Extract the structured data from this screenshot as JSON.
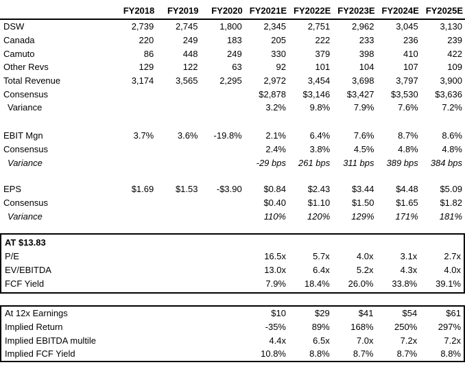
{
  "table": {
    "columns": [
      "FY2018",
      "FY2019",
      "FY2020",
      "FY2021E",
      "FY2022E",
      "FY2023E",
      "FY2024E",
      "FY2025E"
    ],
    "sections": [
      {
        "id": "revenue",
        "rows": [
          {
            "label": "DSW",
            "values": [
              "2,739",
              "2,745",
              "1,800",
              "2,345",
              "2,751",
              "2,962",
              "3,045",
              "3,130"
            ]
          },
          {
            "label": "Canada",
            "values": [
              "220",
              "249",
              "183",
              "205",
              "222",
              "233",
              "236",
              "239"
            ]
          },
          {
            "label": "Camuto",
            "values": [
              "86",
              "448",
              "249",
              "330",
              "379",
              "398",
              "410",
              "422"
            ]
          },
          {
            "label": "Other Revs",
            "values": [
              "129",
              "122",
              "63",
              "92",
              "101",
              "104",
              "107",
              "109"
            ]
          },
          {
            "label": "Total Revenue",
            "values": [
              "3,174",
              "3,565",
              "2,295",
              "2,972",
              "3,454",
              "3,698",
              "3,797",
              "3,900"
            ]
          },
          {
            "label": "Consensus",
            "values": [
              "",
              "",
              "",
              "$2,878",
              "$3,146",
              "$3,427",
              "$3,530",
              "$3,636"
            ]
          },
          {
            "label": "Variance",
            "indent": true,
            "values": [
              "",
              "",
              "",
              "3.2%",
              "9.8%",
              "7.9%",
              "7.6%",
              "7.2%"
            ]
          }
        ]
      },
      {
        "id": "ebit-margin",
        "rows": [
          {
            "label": "EBIT Mgn",
            "values": [
              "3.7%",
              "3.6%",
              "-19.8%",
              "2.1%",
              "6.4%",
              "7.6%",
              "8.7%",
              "8.6%"
            ]
          },
          {
            "label": "Consensus",
            "values": [
              "",
              "",
              "",
              "2.4%",
              "3.8%",
              "4.5%",
              "4.8%",
              "4.8%"
            ]
          },
          {
            "label": "Variance",
            "indent": true,
            "italic": true,
            "values": [
              "",
              "",
              "",
              "-29 bps",
              "261 bps",
              "311 bps",
              "389 bps",
              "384 bps"
            ]
          }
        ]
      },
      {
        "id": "eps",
        "rows": [
          {
            "label": "EPS",
            "values": [
              "$1.69",
              "$1.53",
              "-$3.90",
              "$0.84",
              "$2.43",
              "$3.44",
              "$4.48",
              "$5.09"
            ]
          },
          {
            "label": "Consensus",
            "values": [
              "",
              "",
              "",
              "$0.40",
              "$1.10",
              "$1.50",
              "$1.65",
              "$1.82"
            ]
          },
          {
            "label": "Variance",
            "indent": true,
            "italic": true,
            "values": [
              "",
              "",
              "",
              "110%",
              "120%",
              "129%",
              "171%",
              "181%"
            ]
          }
        ]
      }
    ],
    "boxes": [
      {
        "id": "valuation-at-price",
        "rows": [
          {
            "label": "AT $13.83",
            "bold": true
          },
          {
            "label": "P/E",
            "values": [
              "",
              "",
              "",
              "16.5x",
              "5.7x",
              "4.0x",
              "3.1x",
              "2.7x"
            ]
          },
          {
            "label": "EV/EBITDA",
            "values": [
              "",
              "",
              "",
              "13.0x",
              "6.4x",
              "5.2x",
              "4.3x",
              "4.0x"
            ]
          },
          {
            "label": "FCF Yield",
            "values": [
              "",
              "",
              "",
              "7.9%",
              "18.4%",
              "26.0%",
              "33.8%",
              "39.1%"
            ]
          }
        ]
      },
      {
        "id": "implied-returns",
        "rows": [
          {
            "label": "At 12x Earnings",
            "values": [
              "",
              "",
              "",
              "$10",
              "$29",
              "$41",
              "$54",
              "$61"
            ]
          },
          {
            "label": "Implied Return",
            "values": [
              "",
              "",
              "",
              "-35%",
              "89%",
              "168%",
              "250%",
              "297%"
            ]
          },
          {
            "label": "Implied EBITDA multile",
            "values": [
              "",
              "",
              "",
              "4.4x",
              "6.5x",
              "7.0x",
              "7.2x",
              "7.2x"
            ]
          },
          {
            "label": "Implied FCF Yield",
            "values": [
              "",
              "",
              "",
              "10.8%",
              "8.8%",
              "8.7%",
              "8.7%",
              "8.8%"
            ]
          }
        ]
      }
    ]
  }
}
